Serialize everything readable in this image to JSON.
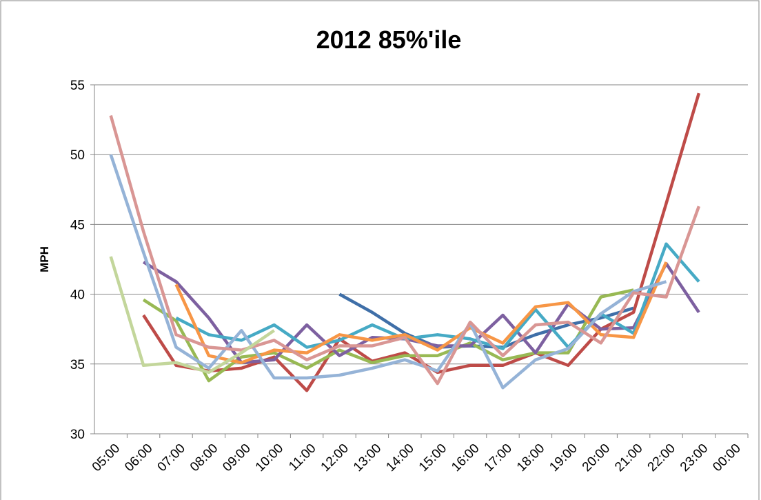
{
  "chart_data": {
    "type": "line",
    "title": "2012 85%'ile",
    "y_label": "MPH",
    "categories": [
      "05:00",
      "06:00",
      "07:00",
      "08:00",
      "09:00",
      "10:00",
      "11:00",
      "12:00",
      "13:00",
      "14:00",
      "15:00",
      "16:00",
      "17:00",
      "18:00",
      "19:00",
      "20:00",
      "21:00",
      "22:00",
      "23:00",
      "00:00"
    ],
    "ylim": [
      30,
      55
    ],
    "yticks": [
      30,
      35,
      40,
      45,
      50,
      55
    ],
    "grid": true,
    "series": [
      {
        "color": "#3f6fa8",
        "values": [
          null,
          null,
          null,
          null,
          null,
          null,
          null,
          40.0,
          38.7,
          37.2,
          36.2,
          36.3,
          36.2,
          37.1,
          37.8,
          38.3,
          39.0,
          null,
          null,
          null
        ]
      },
      {
        "color": "#be4b48",
        "values": [
          null,
          38.5,
          34.9,
          34.5,
          34.7,
          35.5,
          33.1,
          36.8,
          35.2,
          35.8,
          34.4,
          34.9,
          34.9,
          35.8,
          34.9,
          37.5,
          38.7,
          46.5,
          54.4,
          null
        ]
      },
      {
        "color": "#98b954",
        "values": [
          null,
          39.6,
          38.1,
          33.8,
          35.5,
          35.8,
          34.7,
          36.0,
          35.1,
          35.6,
          35.6,
          36.5,
          35.3,
          35.8,
          35.8,
          39.8,
          40.3,
          null,
          null,
          null
        ]
      },
      {
        "color": "#7d60a0",
        "values": [
          null,
          42.3,
          40.9,
          38.3,
          35.1,
          35.3,
          37.8,
          35.6,
          36.9,
          36.8,
          36.3,
          36.3,
          38.5,
          35.8,
          39.3,
          37.5,
          37.6,
          42.2,
          38.7,
          null
        ]
      },
      {
        "color": "#46aac5",
        "values": [
          null,
          null,
          38.3,
          37.1,
          36.7,
          37.8,
          36.2,
          36.7,
          37.8,
          36.8,
          37.1,
          36.8,
          36.1,
          38.9,
          36.2,
          38.6,
          37.2,
          43.6,
          40.9,
          null
        ]
      },
      {
        "color": "#f79646",
        "values": [
          null,
          null,
          40.7,
          35.6,
          35.1,
          36.0,
          35.8,
          37.1,
          36.7,
          37.1,
          36.0,
          37.6,
          36.5,
          39.1,
          39.4,
          37.1,
          36.9,
          42.3,
          null,
          null
        ]
      },
      {
        "color": "#95b3d7",
        "values": [
          50.0,
          43.0,
          36.2,
          34.7,
          37.4,
          34.0,
          34.0,
          34.2,
          34.7,
          35.3,
          34.5,
          37.9,
          33.3,
          35.3,
          36.1,
          38.6,
          40.2,
          40.9,
          null,
          null
        ]
      },
      {
        "color": "#d99694",
        "values": [
          52.8,
          44.5,
          37.1,
          36.2,
          36.0,
          36.7,
          35.3,
          36.3,
          36.3,
          36.9,
          33.6,
          38.0,
          35.6,
          37.8,
          38.0,
          36.5,
          40.1,
          39.8,
          46.3,
          null
        ]
      },
      {
        "color": "#c3d69b",
        "values": [
          42.7,
          34.9,
          35.1,
          34.4,
          35.8,
          37.4,
          null,
          null,
          null,
          null,
          null,
          null,
          null,
          null,
          null,
          null,
          null,
          null,
          null,
          null
        ]
      }
    ]
  }
}
